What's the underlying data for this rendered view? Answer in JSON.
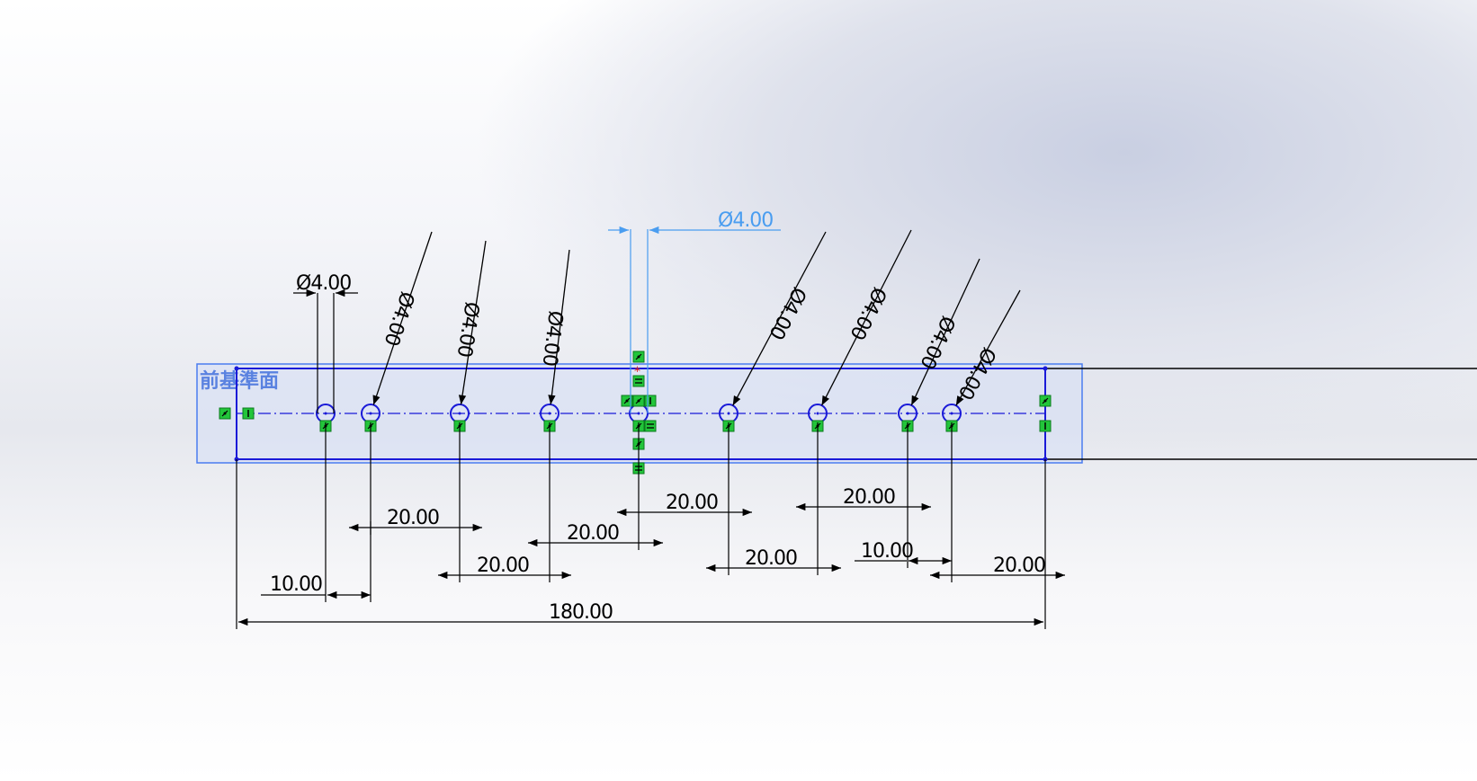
{
  "plane_label": "前基準面",
  "dimensions": {
    "diameter": "Ø4.00",
    "diameter_selected": "Ø4.00",
    "overall_length": "180.00",
    "offset_small": "10.00",
    "spacing": "20.00"
  },
  "colors": {
    "sketch_blue": "#1a1ad8",
    "selected_blue": "#4a9df0",
    "relation_green": "#22c53a",
    "dimension_black": "#000000",
    "plane_fill": "#d6def5"
  },
  "icons": {
    "relation": "relation-icon",
    "origin": "sketch-origin-icon"
  }
}
